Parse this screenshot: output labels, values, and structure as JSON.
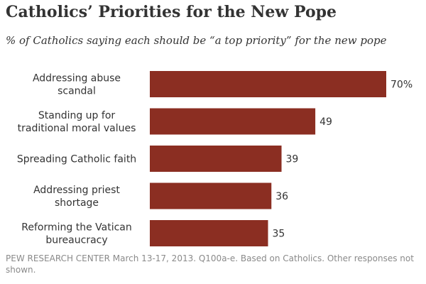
{
  "title": "Catholics’ Priorities for the New Pope",
  "subtitle": "% of Catholics saying each should be “a top priority” for the new pope",
  "footer": "PEW RESEARCH CENTER March 13-17, 2013. Q100a-e. Based on Catholics. Other responses not shown.",
  "colors": {
    "bar": "#8B2E22",
    "text": "#333333"
  },
  "chart_data": {
    "type": "bar",
    "orientation": "horizontal",
    "categories": [
      [
        "Addressing abuse",
        "scandal"
      ],
      [
        "Standing up for",
        "traditional moral values"
      ],
      [
        "Spreading Catholic faith"
      ],
      [
        "Addressing priest",
        "shortage"
      ],
      [
        "Reforming the Vatican",
        "bureaucracy"
      ]
    ],
    "values": [
      70,
      49,
      39,
      36,
      35
    ],
    "value_labels": [
      "70%",
      "49",
      "39",
      "36",
      "35"
    ],
    "xlim": [
      0,
      70
    ],
    "grid": false,
    "legend": "none"
  }
}
